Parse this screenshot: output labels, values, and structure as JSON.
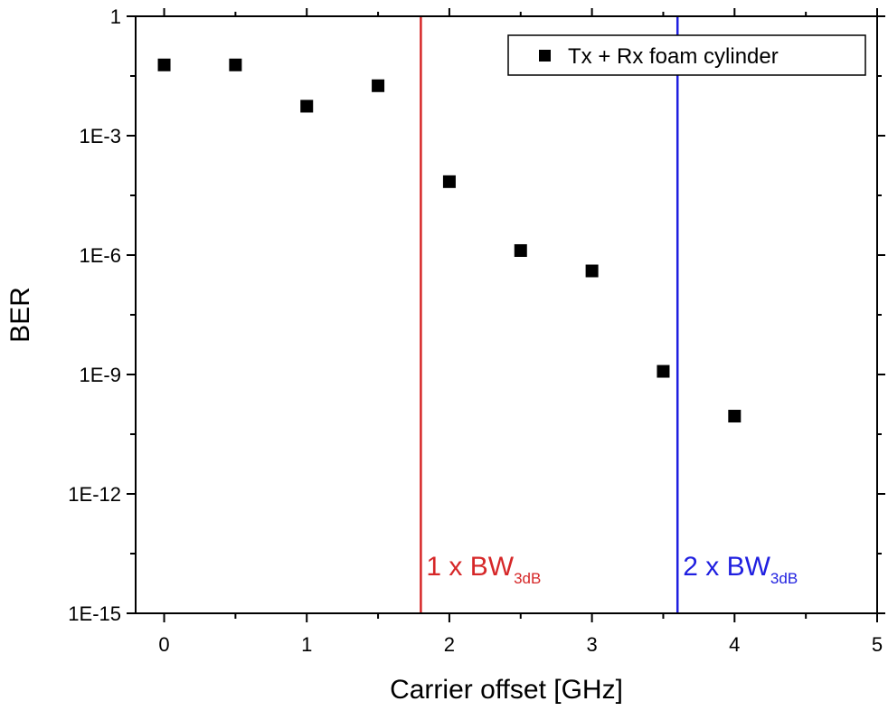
{
  "chart_data": {
    "type": "scatter",
    "xlabel": "Carrier offset [GHz]",
    "ylabel": "BER",
    "xlim": [
      -0.2,
      5
    ],
    "ylim": [
      1e-15,
      1
    ],
    "yscale": "log",
    "x_ticks": [
      0,
      1,
      2,
      3,
      4,
      5
    ],
    "x_tick_labels": [
      "0",
      "1",
      "2",
      "3",
      "4",
      "5"
    ],
    "y_ticks": [
      1,
      0.001,
      1e-06,
      1e-09,
      1e-12,
      1e-15
    ],
    "y_tick_labels": [
      "1",
      "1E-3",
      "1E-6",
      "1E-9",
      "1E-12",
      "1E-15"
    ],
    "grid": false,
    "legend_position": "top-right",
    "series": [
      {
        "name": "Tx + Rx foam cylinder",
        "marker": "square",
        "color": "#000000",
        "x": [
          0,
          0.5,
          1,
          1.5,
          2,
          2.5,
          3,
          3.5,
          4
        ],
        "y": [
          0.06,
          0.06,
          0.0055,
          0.018,
          7e-05,
          1.3e-06,
          4e-07,
          1.2e-09,
          9e-11
        ]
      }
    ],
    "annotations": [
      {
        "type": "vline",
        "x": 1.8,
        "color": "#d62728",
        "label_main": "1 x BW",
        "label_sub": "3dB"
      },
      {
        "type": "vline",
        "x": 3.6,
        "color": "#1f1fe0",
        "label_main": "2 x BW",
        "label_sub": "3dB"
      }
    ]
  }
}
